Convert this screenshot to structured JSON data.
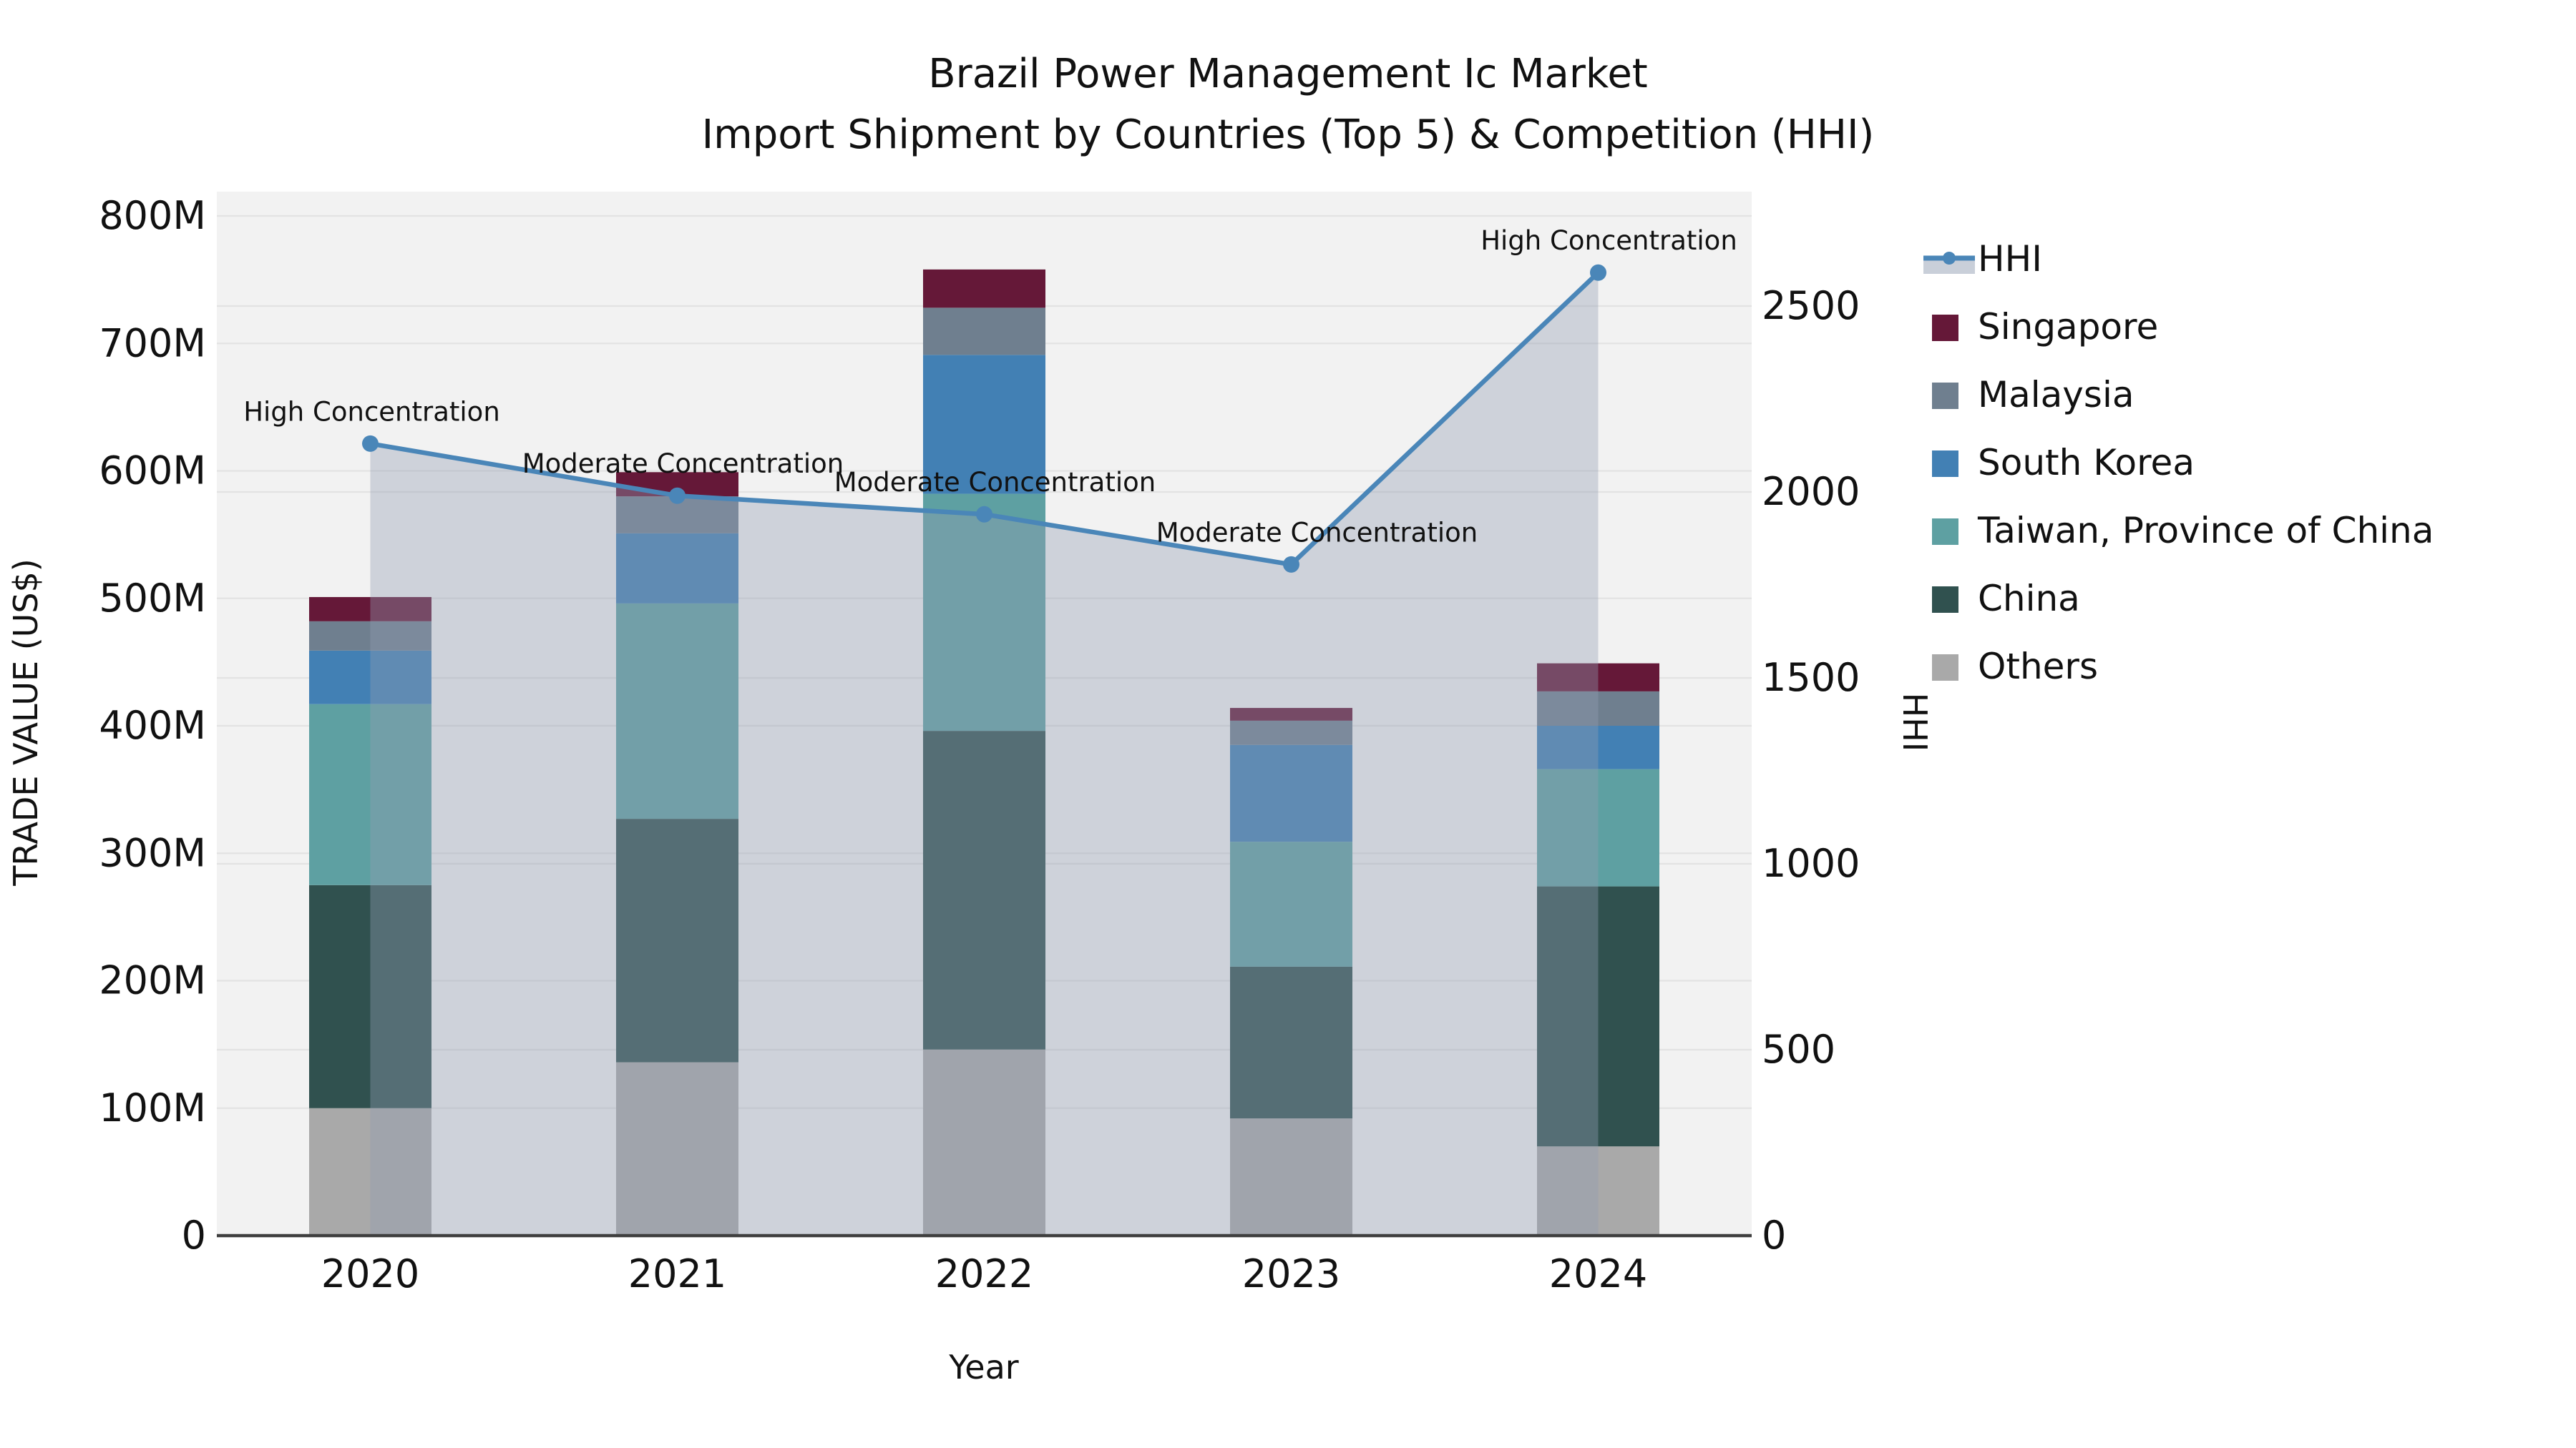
{
  "title": {
    "line1": "Brazil Power Management Ic Market",
    "line2": "Import Shipment by Countries (Top 5) & Competition (HHI)"
  },
  "chart_data": {
    "type": "bar+line",
    "categories": [
      "2020",
      "2021",
      "2022",
      "2023",
      "2024"
    ],
    "bar_unit": "M US$",
    "bar_series": [
      {
        "name": "Others",
        "color": "#A9A9A9",
        "values": [
          100,
          136,
          146,
          92,
          70
        ]
      },
      {
        "name": "China",
        "color": "#30514F",
        "values": [
          175,
          191,
          250,
          119,
          204
        ]
      },
      {
        "name": "Taiwan, Province of China",
        "color": "#5EA0A2",
        "values": [
          142,
          169,
          186,
          98,
          92
        ]
      },
      {
        "name": "South Korea",
        "color": "#4280B4",
        "values": [
          42,
          55,
          109,
          76,
          34
        ]
      },
      {
        "name": "Malaysia",
        "color": "#6F7F8F",
        "values": [
          23,
          29,
          37,
          19,
          27
        ]
      },
      {
        "name": "Singapore",
        "color": "#651838",
        "values": [
          19,
          19,
          30,
          10,
          22
        ]
      }
    ],
    "line_series": {
      "name": "HHI",
      "color": "#4A86B8",
      "area_fill": "rgba(147,157,178,0.38)",
      "values": [
        2130,
        1990,
        1940,
        1805,
        2590
      ],
      "annotations": [
        "High Concentration",
        "Moderate Concentration",
        "Moderate Concentration",
        "Moderate Concentration",
        "High Concentration"
      ]
    },
    "xlabel": "Year",
    "ylabel_left": "TRADE VALUE (US$)",
    "ylabel_right": "HHI",
    "y_left_axis": {
      "ticks": [
        "0",
        "100M",
        "200M",
        "300M",
        "400M",
        "500M",
        "600M",
        "700M",
        "800M"
      ],
      "tick_values": [
        0,
        100,
        200,
        300,
        400,
        500,
        600,
        700,
        800
      ],
      "max_gridline": 800
    },
    "y_right_axis": {
      "ticks": [
        "0",
        "500",
        "1000",
        "1500",
        "2000",
        "2500"
      ],
      "tick_values": [
        0,
        500,
        1000,
        1500,
        2000,
        2500
      ],
      "max_gridline": 2500
    },
    "grid": "on",
    "legend_position": "right",
    "legend": [
      {
        "label": "HHI",
        "type": "line",
        "color": "#4A86B8"
      },
      {
        "label": "Singapore",
        "type": "patch",
        "color": "#651838"
      },
      {
        "label": "Malaysia",
        "type": "patch",
        "color": "#6F7F8F"
      },
      {
        "label": "South Korea",
        "type": "patch",
        "color": "#4280B4"
      },
      {
        "label": "Taiwan, Province of China",
        "type": "patch",
        "color": "#5EA0A2"
      },
      {
        "label": "China",
        "type": "patch",
        "color": "#30514F"
      },
      {
        "label": "Others",
        "type": "patch",
        "color": "#A9A9A9"
      }
    ],
    "colors": {
      "plot_background": "#F2F2F2",
      "gridline": "#E3E3E3",
      "axis_spine": "#3F3F3F",
      "text": "#111111"
    }
  }
}
